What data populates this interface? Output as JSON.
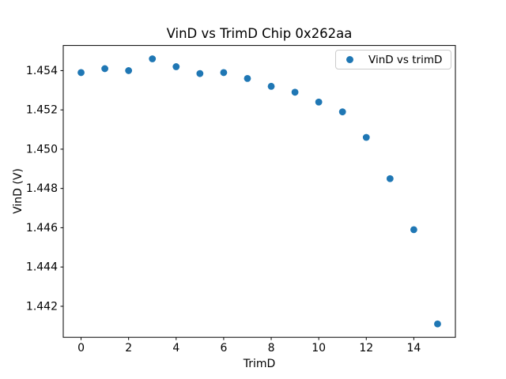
{
  "chart_data": {
    "type": "scatter",
    "title": "VinD vs TrimD Chip 0x262aa",
    "xlabel": "TrimD",
    "ylabel": "VinD (V)",
    "grid": false,
    "background": "#ffffff",
    "axis_color": "#000000",
    "xlim": [
      -0.75,
      15.75
    ],
    "ylim": [
      1.44042,
      1.45528
    ],
    "xticks": [
      0,
      2,
      4,
      6,
      8,
      10,
      12,
      14
    ],
    "yticks": [
      1.442,
      1.444,
      1.446,
      1.448,
      1.45,
      1.452,
      1.454
    ],
    "ytick_labels": [
      "1.442",
      "1.444",
      "1.446",
      "1.448",
      "1.450",
      "1.452",
      "1.454"
    ],
    "legend": {
      "position": "upper right",
      "entries": [
        "VinD vs trimD"
      ]
    },
    "series": [
      {
        "name": "VinD vs trimD",
        "color": "#1f77b4",
        "marker": "circle",
        "x": [
          0,
          1,
          2,
          3,
          4,
          5,
          6,
          7,
          8,
          9,
          10,
          11,
          12,
          13,
          14,
          15
        ],
        "y": [
          1.4539,
          1.4541,
          1.454,
          1.4546,
          1.4542,
          1.45385,
          1.4539,
          1.4536,
          1.4532,
          1.4529,
          1.4524,
          1.4519,
          1.4506,
          1.4485,
          1.4459,
          1.4411
        ]
      }
    ]
  }
}
